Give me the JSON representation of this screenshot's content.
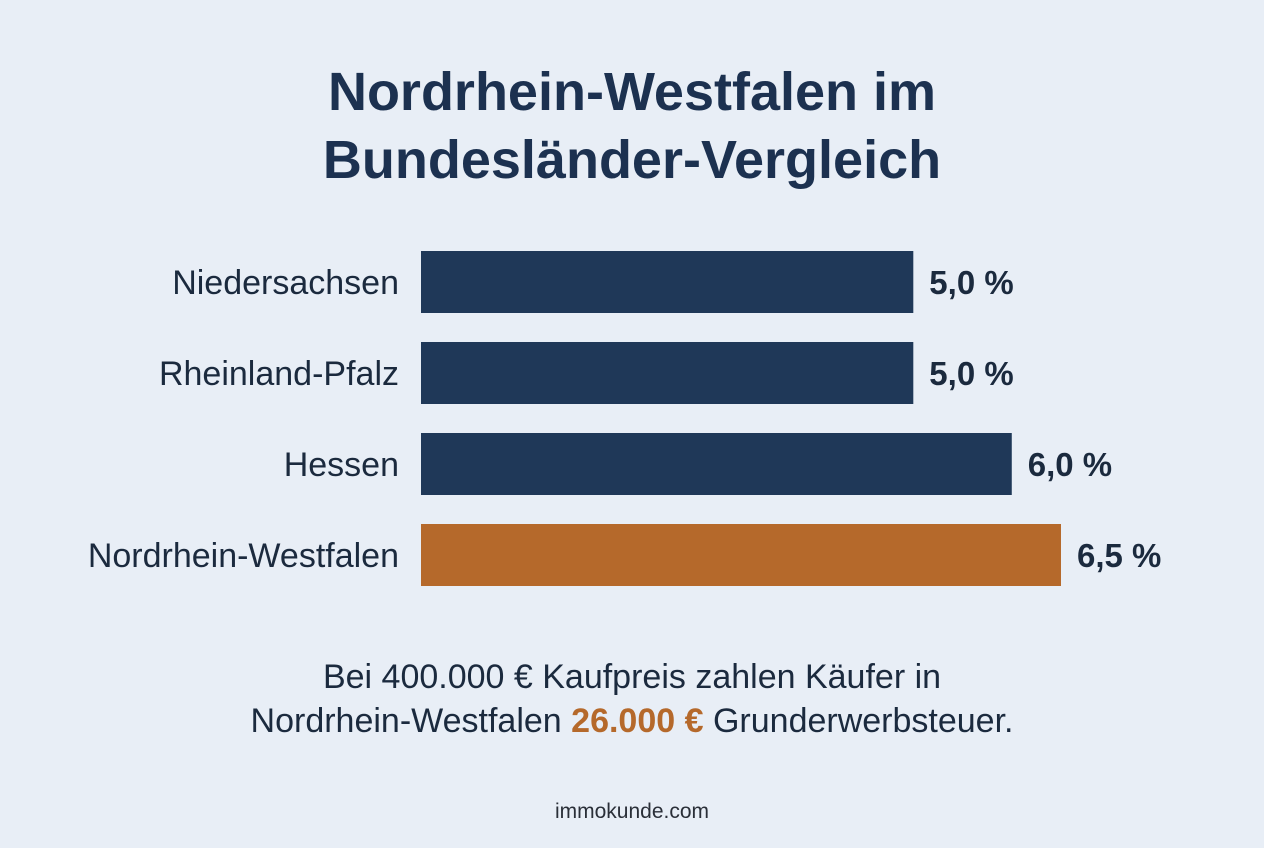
{
  "title_line1": "Nordrhein-Westfalen im",
  "title_line2": "Bundesländer-Vergleich",
  "chart_data": {
    "type": "bar",
    "orientation": "horizontal",
    "categories": [
      "Niedersachsen",
      "Rheinland-Pfalz",
      "Hessen",
      "Nordrhein-Westfalen"
    ],
    "values": [
      5.0,
      5.0,
      6.0,
      6.5
    ],
    "value_labels": [
      "5,0 %",
      "5,0 %",
      "6,0 %",
      "6,5 %"
    ],
    "bar_colors": [
      "#1f3858",
      "#1f3858",
      "#1f3858",
      "#b5692b"
    ],
    "xlim": [
      0,
      6.5
    ],
    "grid": false,
    "legend": "none"
  },
  "note": {
    "line1": "Bei 400.000 € Kaufpreis zahlen Käufer in",
    "line2_before": "Nordrhein-Westfalen ",
    "line2_highlight": "26.000 €",
    "line2_after": " Grunderwerbsteuer.",
    "highlight_color": "#b5692b"
  },
  "footer": "immokunde.com"
}
